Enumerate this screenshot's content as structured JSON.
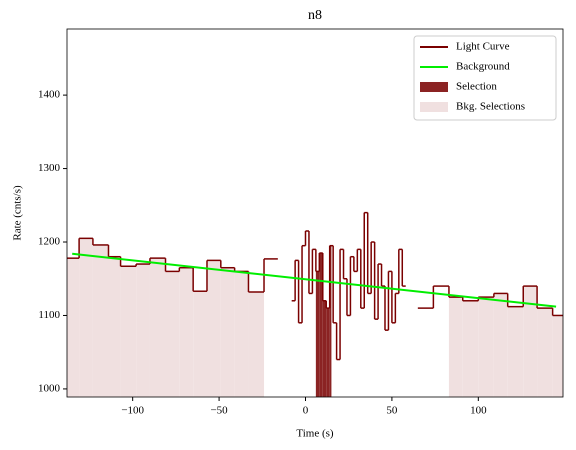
{
  "chart_data": {
    "type": "step",
    "title": "n8",
    "xlabel": "Time (s)",
    "ylabel": "Rate (cnts/s)",
    "xlim": [
      -138,
      149
    ],
    "ylim": [
      989,
      1490
    ],
    "xticks": [
      {
        "value": -100,
        "label": "−100"
      },
      {
        "value": -50,
        "label": "−50"
      },
      0,
      50,
      100
    ],
    "yticks": [
      1000,
      1100,
      1200,
      1300,
      1400
    ],
    "legend": "upper right",
    "light_curve": {
      "name": "Light Curve",
      "color": "#7a0000",
      "bins": [
        -138,
        -131,
        -123,
        -114,
        -107,
        -98,
        -90,
        -81,
        -73,
        -65,
        -57,
        -49,
        -41,
        -33,
        -24,
        -16,
        -8,
        -6,
        -4,
        -2,
        0,
        2,
        4,
        6,
        8,
        10,
        12,
        14,
        16,
        18,
        20,
        22,
        24,
        26,
        28,
        30,
        32,
        34,
        36,
        38,
        40,
        42,
        44,
        46,
        48,
        50,
        52,
        54,
        56,
        58,
        65,
        74,
        83,
        91,
        100,
        109,
        117,
        126,
        134,
        143,
        149
      ],
      "values": [
        1178,
        1205,
        1196,
        1180,
        1167,
        1170,
        1178,
        1160,
        1165,
        1133,
        1175,
        1165,
        1160,
        1132,
        1177,
        null,
        1120,
        1175,
        1090,
        1195,
        1215,
        1130,
        1190,
        1160,
        1185,
        1120,
        1110,
        1195,
        1090,
        1040,
        1190,
        1150,
        1100,
        1180,
        1160,
        1190,
        1110,
        1240,
        1130,
        1200,
        1095,
        1170,
        1140,
        1080,
        1160,
        1090,
        1130,
        1190,
        1140,
        null,
        1110,
        1140,
        1125,
        1120,
        1125,
        1130,
        1112,
        1140,
        1110,
        1100
      ]
    },
    "background": {
      "name": "Background",
      "color": "#00ee00",
      "x": [
        -135,
        145
      ],
      "values": [
        1184,
        1112
      ]
    },
    "selection": {
      "name": "Selection",
      "color": "#8b2323",
      "range": [
        6,
        15
      ]
    },
    "bkg_selections": {
      "name": "Bkg. Selections",
      "color": "#f0e0e0",
      "ranges": [
        [
          -138,
          -24
        ],
        [
          83,
          149
        ]
      ]
    }
  }
}
